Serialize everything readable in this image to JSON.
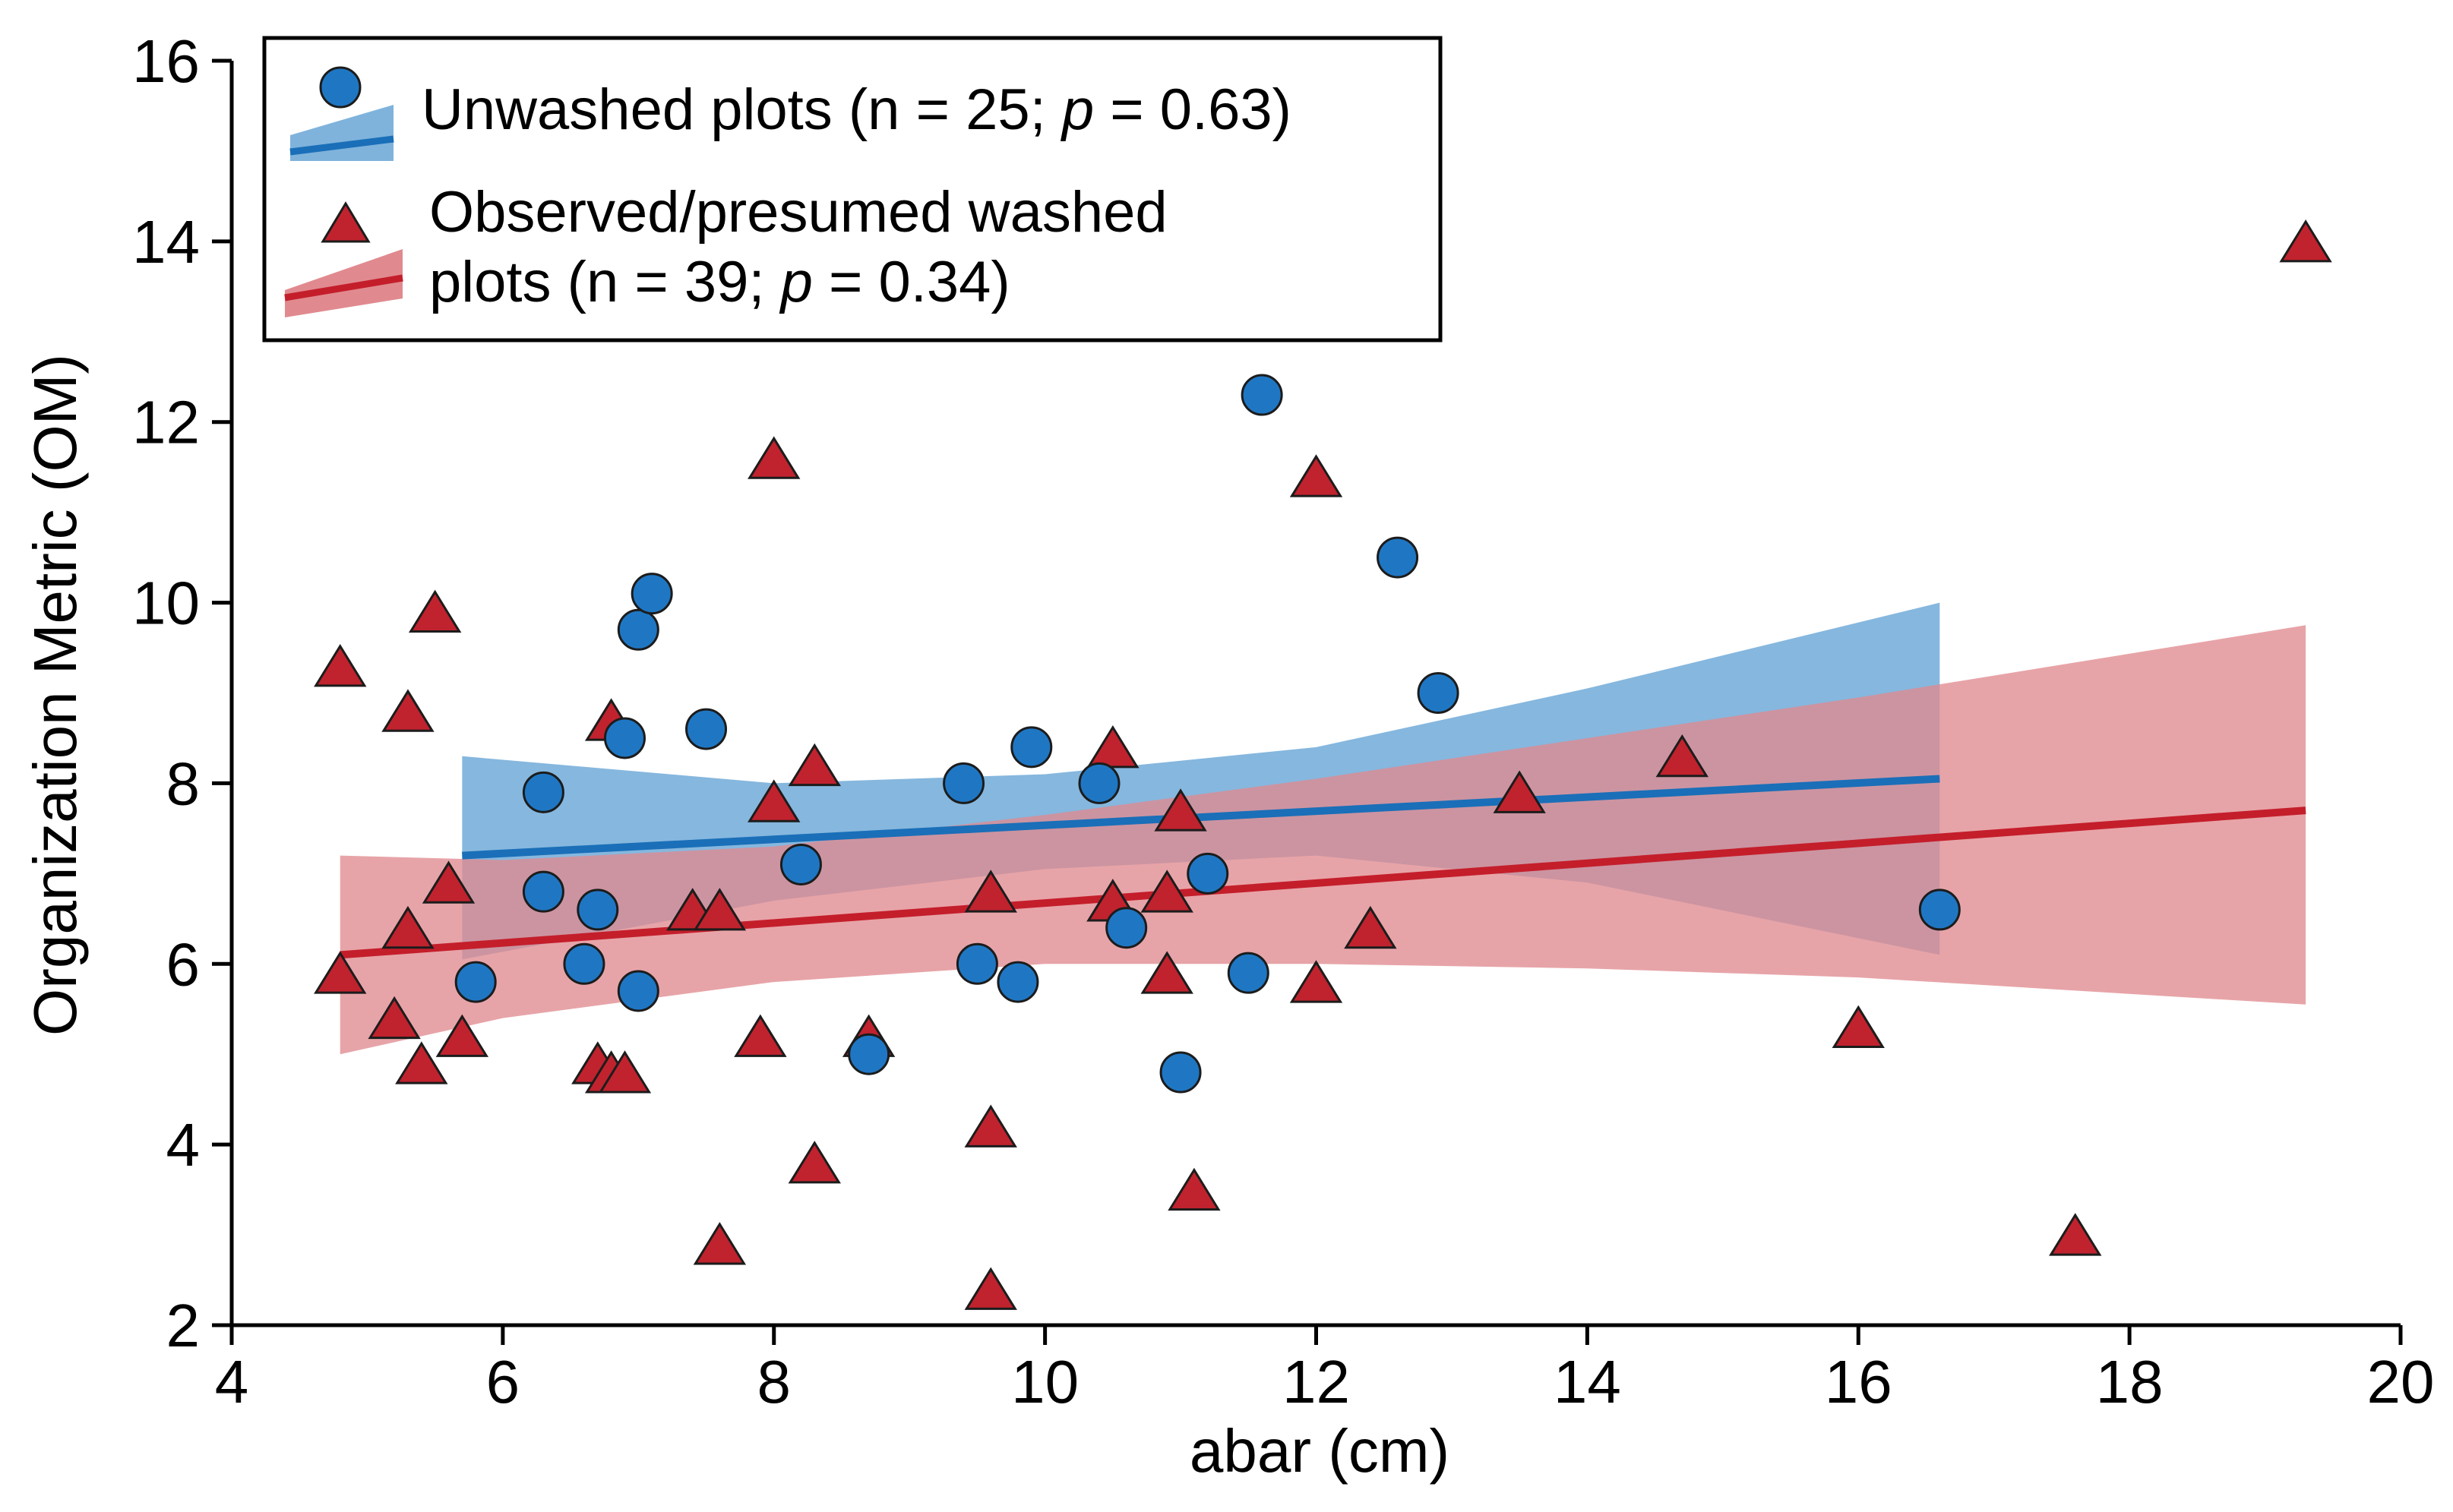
{
  "chart_data": {
    "type": "scatter",
    "title": "",
    "xlabel": "abar (cm)",
    "ylabel": "Organization Metric (OM)",
    "xlim": [
      4,
      20
    ],
    "ylim": [
      2,
      16
    ],
    "xticks": [
      4,
      6,
      8,
      10,
      12,
      14,
      16,
      18,
      20
    ],
    "yticks": [
      2,
      4,
      6,
      8,
      10,
      12,
      14,
      16
    ],
    "legend_position": "top-left",
    "series": [
      {
        "name": "Unwashed plots",
        "legend_prefix": "Unwashed plots (n = 25; ",
        "p_symbol": "p",
        "legend_suffix": " = 0.63)",
        "n": 25,
        "p_value": 0.63,
        "marker": "circle",
        "color": "#1f77c4",
        "band_color": "#7fb3dc",
        "line_color": "#1a6fb8",
        "points": [
          [
            6.3,
            7.9
          ],
          [
            6.3,
            6.8
          ],
          [
            6.6,
            6.0
          ],
          [
            6.7,
            6.6
          ],
          [
            5.8,
            5.8
          ],
          [
            6.9,
            8.5
          ],
          [
            7.0,
            9.7
          ],
          [
            7.1,
            10.1
          ],
          [
            7.0,
            5.7
          ],
          [
            7.5,
            8.6
          ],
          [
            8.2,
            7.1
          ],
          [
            8.7,
            5.0
          ],
          [
            9.4,
            8.0
          ],
          [
            9.5,
            6.0
          ],
          [
            9.8,
            5.8
          ],
          [
            9.9,
            8.4
          ],
          [
            10.4,
            8.0
          ],
          [
            10.6,
            6.4
          ],
          [
            11.0,
            4.8
          ],
          [
            11.2,
            7.0
          ],
          [
            11.5,
            5.9
          ],
          [
            11.6,
            12.3
          ],
          [
            12.6,
            10.5
          ],
          [
            12.9,
            9.0
          ],
          [
            16.6,
            6.6
          ]
        ],
        "trend": {
          "x_start": 5.7,
          "y_start": 7.2,
          "x_end": 16.6,
          "y_end": 8.05
        },
        "band": {
          "x": [
            5.7,
            8.0,
            10.0,
            12.0,
            14.0,
            16.6
          ],
          "lower": [
            6.05,
            6.7,
            7.05,
            7.2,
            6.9,
            6.1
          ],
          "upper": [
            8.3,
            8.0,
            8.1,
            8.4,
            9.05,
            10.0
          ]
        }
      },
      {
        "name": "Observed/presumed washed plots",
        "legend_line1": "Observed/presumed washed",
        "legend_prefix": "plots (n = 39; ",
        "p_symbol": "p",
        "legend_suffix": " = 0.34)",
        "n": 39,
        "p_value": 0.34,
        "marker": "triangle",
        "color": "#c0232e",
        "band_color": "#e08a8f",
        "line_color": "#c41e2b",
        "points": [
          [
            4.8,
            9.3
          ],
          [
            4.8,
            5.9
          ],
          [
            5.2,
            5.4
          ],
          [
            5.3,
            8.8
          ],
          [
            5.3,
            6.4
          ],
          [
            5.4,
            4.9
          ],
          [
            5.5,
            9.9
          ],
          [
            5.6,
            6.9
          ],
          [
            5.7,
            5.2
          ],
          [
            6.7,
            4.9
          ],
          [
            6.8,
            4.8
          ],
          [
            6.9,
            4.8
          ],
          [
            6.8,
            8.7
          ],
          [
            7.4,
            6.6
          ],
          [
            7.6,
            6.6
          ],
          [
            7.6,
            2.9
          ],
          [
            7.9,
            5.2
          ],
          [
            8.0,
            11.6
          ],
          [
            8.0,
            7.8
          ],
          [
            8.3,
            8.2
          ],
          [
            8.3,
            3.8
          ],
          [
            8.7,
            5.2
          ],
          [
            9.6,
            6.8
          ],
          [
            9.6,
            4.2
          ],
          [
            9.6,
            2.4
          ],
          [
            10.5,
            8.4
          ],
          [
            10.5,
            6.7
          ],
          [
            10.9,
            6.8
          ],
          [
            10.9,
            5.9
          ],
          [
            11.0,
            7.7
          ],
          [
            11.1,
            3.5
          ],
          [
            12.0,
            11.4
          ],
          [
            12.0,
            5.8
          ],
          [
            12.4,
            6.4
          ],
          [
            13.5,
            7.9
          ],
          [
            14.7,
            8.3
          ],
          [
            16.0,
            5.3
          ],
          [
            17.6,
            3.0
          ],
          [
            19.3,
            14.0
          ]
        ],
        "trend": {
          "x_start": 4.8,
          "y_start": 6.1,
          "x_end": 19.3,
          "y_end": 7.7
        },
        "band": {
          "x": [
            4.8,
            6.0,
            8.0,
            10.0,
            12.0,
            14.0,
            16.0,
            19.3
          ],
          "lower": [
            5.0,
            5.4,
            5.8,
            6.0,
            6.0,
            5.95,
            5.85,
            5.55
          ],
          "upper": [
            7.2,
            7.15,
            7.3,
            7.65,
            8.05,
            8.5,
            8.95,
            9.75
          ]
        }
      }
    ]
  }
}
